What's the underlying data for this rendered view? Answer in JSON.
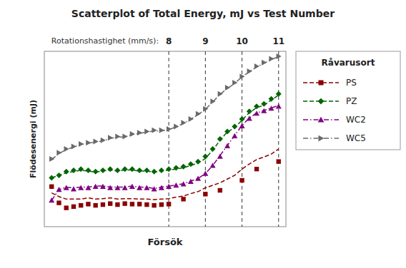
{
  "chart_data": {
    "type": "line",
    "title": "Scatterplot of Total Energy, mJ vs Test Number",
    "x_label": "Försök",
    "y_label": "Flödesenergi (mJ)",
    "xlim": [
      0,
      33
    ],
    "ylim": [
      0,
      700
    ],
    "tick_labels": false,
    "grid": false,
    "legend": "right",
    "legend_title": "Råvarusort",
    "vline_title": "Rotationshastighet (mm/s):",
    "vlines": [
      {
        "x": 17,
        "text": "8"
      },
      {
        "x": 22,
        "text": "9"
      },
      {
        "x": 27,
        "text": "10"
      },
      {
        "x": 32,
        "text": "11"
      }
    ],
    "series": [
      {
        "name": "PS",
        "color": "#8B0000",
        "line_style": "dashed",
        "marker": "square",
        "x": [
          1,
          2,
          3,
          4,
          5,
          6,
          7,
          8,
          9,
          10,
          11,
          12,
          13,
          14,
          15,
          16,
          17,
          18,
          19,
          20,
          21,
          22,
          23,
          24,
          25,
          26,
          27,
          28,
          29,
          30,
          31,
          32
        ],
        "values": [
          135,
          120,
          110,
          110,
          110,
          115,
          110,
          112,
          115,
          110,
          112,
          112,
          110,
          110,
          108,
          110,
          112,
          118,
          122,
          132,
          140,
          155,
          165,
          175,
          190,
          205,
          230,
          250,
          268,
          278,
          290,
          310
        ],
        "scatter_x": [
          1,
          2,
          3,
          4,
          5,
          6,
          7,
          8,
          9,
          10,
          11,
          12,
          13,
          14,
          15,
          16,
          17,
          19,
          22,
          24,
          27,
          29,
          32
        ],
        "scatter_values": [
          160,
          95,
          75,
          80,
          85,
          90,
          85,
          88,
          92,
          88,
          92,
          90,
          90,
          88,
          85,
          88,
          90,
          110,
          130,
          145,
          185,
          230,
          260
        ]
      },
      {
        "name": "PZ",
        "color": "#006400",
        "line_style": "dashed",
        "marker": "diamond",
        "x": [
          1,
          2,
          3,
          4,
          5,
          6,
          7,
          8,
          9,
          10,
          11,
          12,
          13,
          14,
          15,
          16,
          17,
          18,
          19,
          20,
          21,
          22,
          23,
          24,
          25,
          26,
          27,
          28,
          29,
          30,
          31,
          32
        ],
        "values": [
          195,
          205,
          215,
          220,
          225,
          222,
          218,
          222,
          226,
          222,
          226,
          226,
          222,
          222,
          218,
          222,
          226,
          230,
          235,
          244,
          254,
          272,
          305,
          345,
          378,
          395,
          425,
          455,
          475,
          485,
          505,
          525
        ],
        "scatter_x": [
          1,
          2,
          3,
          4,
          5,
          6,
          7,
          8,
          9,
          10,
          11,
          12,
          13,
          14,
          15,
          16,
          17,
          18,
          19,
          20,
          21,
          22,
          23,
          24,
          25,
          26,
          27,
          28,
          29,
          30,
          31,
          32
        ],
        "scatter_values": [
          195,
          205,
          220,
          225,
          230,
          225,
          220,
          225,
          230,
          225,
          230,
          230,
          225,
          225,
          220,
          225,
          230,
          235,
          240,
          250,
          260,
          280,
          310,
          350,
          380,
          400,
          430,
          460,
          480,
          490,
          510,
          530
        ]
      },
      {
        "name": "WC2",
        "color": "#800080",
        "line_style": "dashdot",
        "marker": "triangle-up",
        "x": [
          1,
          2,
          3,
          4,
          5,
          6,
          7,
          8,
          9,
          10,
          11,
          12,
          13,
          14,
          15,
          16,
          17,
          18,
          19,
          20,
          21,
          22,
          23,
          24,
          25,
          26,
          27,
          28,
          29,
          30,
          31,
          32
        ],
        "values": [
          105,
          148,
          158,
          155,
          158,
          158,
          162,
          162,
          158,
          158,
          158,
          162,
          158,
          158,
          152,
          158,
          162,
          166,
          172,
          182,
          192,
          212,
          244,
          284,
          324,
          364,
          404,
          434,
          454,
          464,
          474,
          484
        ],
        "scatter_x": [
          1,
          2,
          3,
          4,
          5,
          6,
          7,
          8,
          9,
          10,
          11,
          12,
          13,
          14,
          15,
          16,
          17,
          18,
          19,
          20,
          21,
          22,
          23,
          24,
          25,
          26,
          27,
          28,
          29,
          30,
          31,
          32
        ],
        "scatter_values": [
          105,
          148,
          155,
          150,
          155,
          155,
          160,
          160,
          155,
          155,
          155,
          160,
          155,
          155,
          150,
          155,
          160,
          165,
          170,
          180,
          192,
          212,
          244,
          280,
          322,
          362,
          402,
          432,
          452,
          462,
          472,
          480
        ]
      },
      {
        "name": "WC5",
        "color": "#696969",
        "line_style": "dashdot",
        "marker": "triangle-right",
        "x": [
          1,
          2,
          3,
          4,
          5,
          6,
          7,
          8,
          9,
          10,
          11,
          12,
          13,
          14,
          15,
          16,
          17,
          18,
          19,
          20,
          21,
          22,
          23,
          24,
          25,
          26,
          27,
          28,
          29,
          30,
          31,
          32
        ],
        "values": [
          268,
          292,
          308,
          318,
          328,
          333,
          338,
          342,
          352,
          358,
          358,
          368,
          372,
          378,
          382,
          382,
          388,
          398,
          412,
          428,
          448,
          468,
          498,
          528,
          552,
          572,
          598,
          618,
          638,
          652,
          668,
          678
        ],
        "scatter_x": [
          1,
          2,
          3,
          4,
          5,
          6,
          7,
          8,
          9,
          10,
          11,
          12,
          13,
          14,
          15,
          16,
          17,
          18,
          19,
          20,
          21,
          22,
          23,
          24,
          25,
          26,
          27,
          28,
          29,
          30,
          31,
          32
        ],
        "scatter_values": [
          270,
          295,
          310,
          320,
          330,
          335,
          340,
          345,
          355,
          360,
          360,
          370,
          375,
          380,
          385,
          385,
          390,
          400,
          415,
          430,
          450,
          470,
          500,
          530,
          555,
          575,
          600,
          620,
          640,
          655,
          670,
          680
        ]
      }
    ]
  }
}
